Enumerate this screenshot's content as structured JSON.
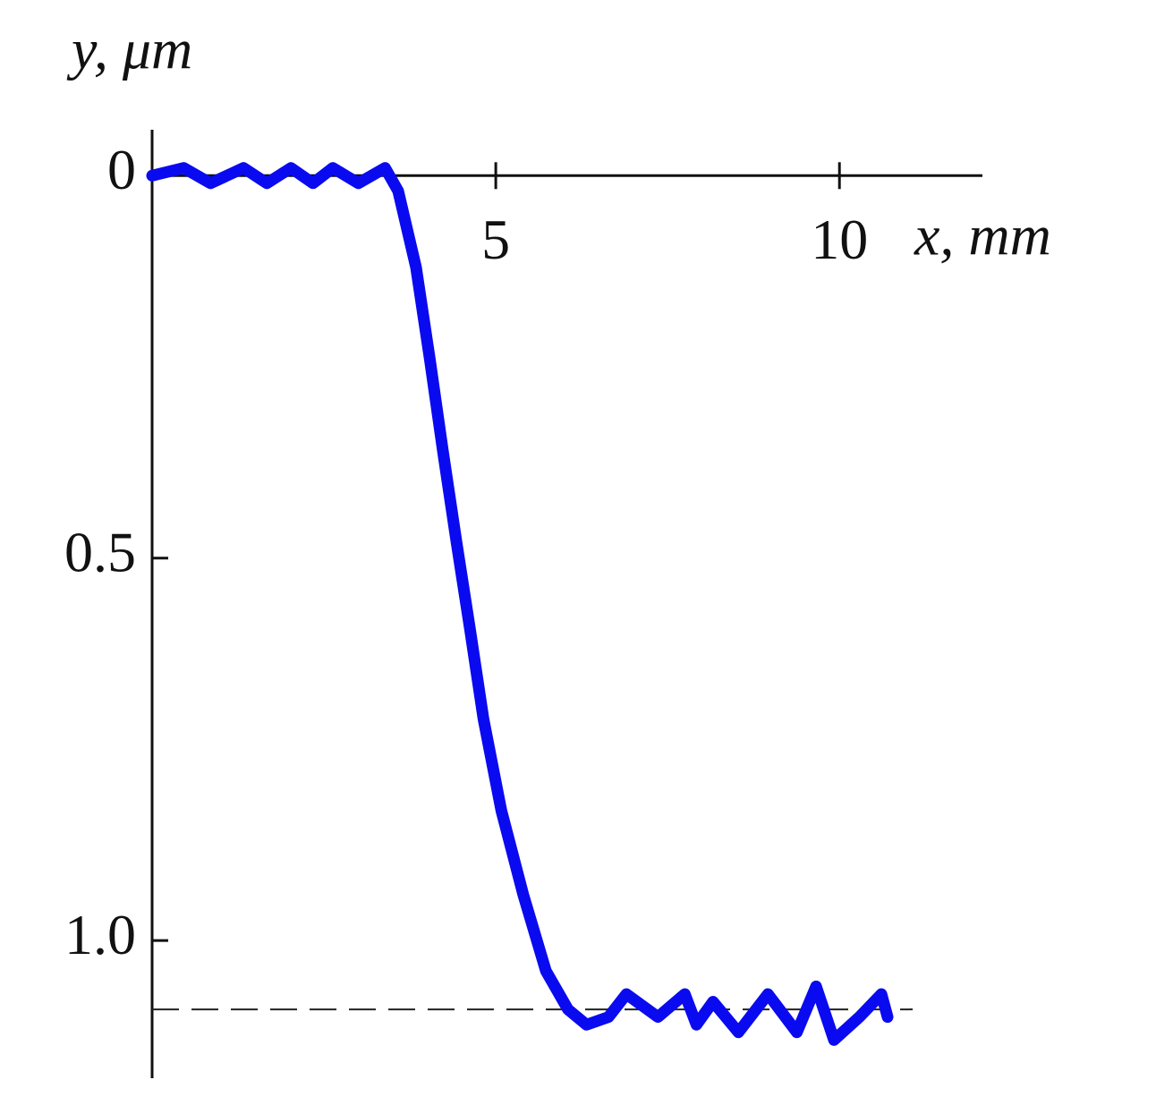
{
  "chart_data": {
    "type": "line",
    "y_label": "y, μm",
    "x_label": "x, mm",
    "x": [
      0,
      0.46,
      0.85,
      1.33,
      1.67,
      2.02,
      2.34,
      2.63,
      3.0,
      3.39,
      3.58,
      3.84,
      4.04,
      4.23,
      4.43,
      4.62,
      4.82,
      5.08,
      5.4,
      5.73,
      6.05,
      6.32,
      6.64,
      6.9,
      7.36,
      7.75,
      7.92,
      8.16,
      8.53,
      8.96,
      9.38,
      9.66,
      9.92,
      10.29,
      10.61,
      10.7
    ],
    "values": [
      0,
      -0.01,
      0.01,
      -0.01,
      0.01,
      -0.01,
      0.01,
      -0.01,
      0.01,
      -0.01,
      0.02,
      0.12,
      0.24,
      0.36,
      0.48,
      0.59,
      0.71,
      0.83,
      0.94,
      1.04,
      1.09,
      1.11,
      1.1,
      1.07,
      1.1,
      1.07,
      1.11,
      1.08,
      1.12,
      1.07,
      1.12,
      1.06,
      1.13,
      1.1,
      1.07,
      1.1
    ],
    "color": "#0a0af0",
    "xlim": [
      0,
      12.08
    ],
    "ylim": [
      -0.06,
      1.18
    ],
    "y_inverted": true,
    "xticks": [
      5,
      10
    ],
    "yticks": [
      0,
      0.5,
      {
        "value": 1,
        "label": "1.0"
      }
    ],
    "reference_y": 1.09
  }
}
